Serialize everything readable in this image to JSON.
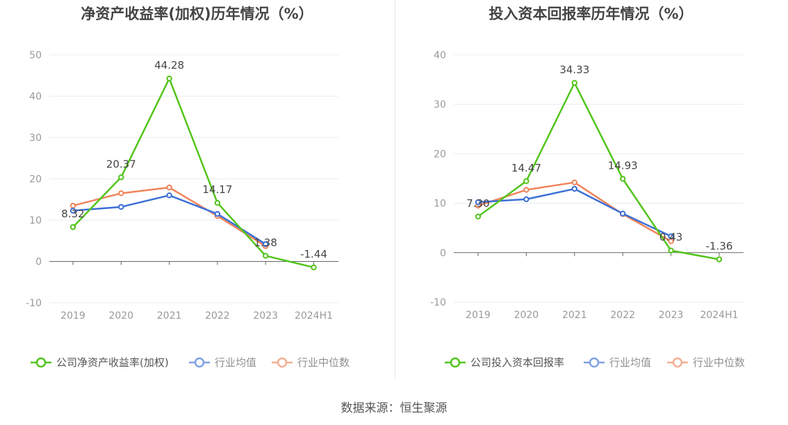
{
  "footer": {
    "source": "数据来源：恒生聚源"
  },
  "chart_data": [
    {
      "type": "line",
      "title": "净资产收益率(加权)历年情况（%）",
      "categories": [
        "2019",
        "2020",
        "2021",
        "2022",
        "2023",
        "2024H1"
      ],
      "ylim": [
        -10,
        50
      ],
      "yticks": [
        50,
        40,
        30,
        20,
        10,
        0,
        -10
      ],
      "grid": true,
      "legend_position": "bottom",
      "series": [
        {
          "name": "公司净资产收益率(加权)",
          "color": "#52c41a",
          "values": [
            8.32,
            20.37,
            44.28,
            14.17,
            1.38,
            -1.44
          ],
          "labels": [
            "8.32",
            "20.37",
            "44.28",
            "14.17",
            "1.38",
            "-1.44"
          ]
        },
        {
          "name": "行业均值",
          "color": "#3b6fd6",
          "values": [
            12.3,
            13.2,
            16.0,
            11.5,
            4.2,
            null
          ]
        },
        {
          "name": "行业中位数",
          "color": "#f0845a",
          "values": [
            13.5,
            16.5,
            17.9,
            11.0,
            3.7,
            null
          ]
        }
      ]
    },
    {
      "type": "line",
      "title": "投入资本回报率历年情况（%）",
      "categories": [
        "2019",
        "2020",
        "2021",
        "2022",
        "2023",
        "2024H1"
      ],
      "ylim": [
        -10,
        40
      ],
      "yticks": [
        40,
        30,
        20,
        10,
        0,
        -10
      ],
      "grid": true,
      "legend_position": "bottom",
      "series": [
        {
          "name": "公司投入资本回报率",
          "color": "#52c41a",
          "values": [
            7.3,
            14.47,
            34.33,
            14.93,
            0.43,
            -1.36
          ],
          "labels": [
            "7.30",
            "14.47",
            "34.33",
            "14.93",
            "0.43",
            "-1.36"
          ]
        },
        {
          "name": "行业均值",
          "color": "#3b6fd6",
          "values": [
            10.2,
            10.8,
            12.9,
            7.9,
            3.3,
            null
          ]
        },
        {
          "name": "行业中位数",
          "color": "#f0845a",
          "values": [
            9.5,
            12.7,
            14.2,
            7.8,
            2.3,
            null
          ]
        }
      ]
    }
  ]
}
